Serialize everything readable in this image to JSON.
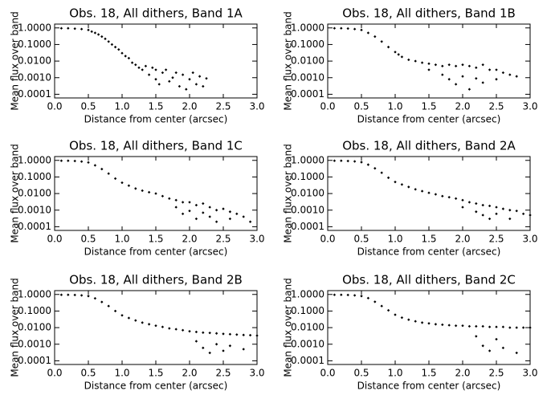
{
  "chart_data": [
    {
      "type": "scatter",
      "title": "Obs. 18, All dithers, Band 1A",
      "xlabel": "Distance from center (arcsec)",
      "ylabel": "Mean flux over band",
      "color": "#000000",
      "log_y": true,
      "xlim": [
        0,
        3
      ],
      "ylim": [
        6e-05,
        1.7
      ],
      "xticks": [
        {
          "value": 0,
          "label": "0.0"
        },
        0.5,
        {
          "value": 1,
          "label": "1.0"
        },
        1.5,
        {
          "value": 2,
          "label": "2.0"
        },
        2.5,
        {
          "value": 3,
          "label": "3.0"
        }
      ],
      "yticks": [
        {
          "value": 1,
          "label": "1.0000"
        },
        {
          "value": 0.1,
          "label": "0.1000"
        },
        {
          "value": 0.01,
          "label": "0.0100"
        },
        {
          "value": 0.001,
          "label": "0.0010"
        },
        {
          "value": 0.0001,
          "label": "0.0001"
        }
      ],
      "x": [
        0.1,
        0.2,
        0.3,
        0.4,
        0.5,
        0.55,
        0.6,
        0.65,
        0.7,
        0.75,
        0.8,
        0.85,
        0.9,
        0.95,
        1.0,
        1.05,
        1.1,
        1.15,
        1.2,
        1.25,
        1.3,
        1.35,
        1.4,
        1.45,
        1.5,
        1.5,
        1.55,
        1.6,
        1.65,
        1.7,
        1.75,
        1.8,
        1.85,
        1.9,
        1.95,
        2.0,
        2.05,
        2.1,
        2.15,
        2.2,
        2.25
      ],
      "values": [
        0.95,
        0.95,
        0.9,
        0.85,
        0.75,
        0.6,
        0.5,
        0.4,
        0.3,
        0.22,
        0.15,
        0.1,
        0.07,
        0.05,
        0.03,
        0.02,
        0.015,
        0.008,
        0.006,
        0.004,
        0.003,
        0.005,
        0.0015,
        0.004,
        0.0008,
        0.003,
        0.0004,
        0.002,
        0.003,
        0.0006,
        0.001,
        0.002,
        0.0003,
        0.0015,
        0.0002,
        0.0008,
        0.002,
        0.0004,
        0.0012,
        0.0003,
        0.0009
      ]
    },
    {
      "type": "scatter",
      "title": "Obs. 18, All dithers, Band 1B",
      "xlabel": "Distance from center (arcsec)",
      "ylabel": "Mean flux over band",
      "color": "#000000",
      "log_y": true,
      "xlim": [
        0,
        3
      ],
      "ylim": [
        6e-05,
        1.7
      ],
      "xticks": [
        {
          "value": 0,
          "label": "0.0"
        },
        0.5,
        {
          "value": 1,
          "label": "1.0"
        },
        1.5,
        {
          "value": 2,
          "label": "2.0"
        },
        2.5,
        {
          "value": 3,
          "label": "3.0"
        }
      ],
      "yticks": [
        {
          "value": 1,
          "label": "1.0000"
        },
        {
          "value": 0.1,
          "label": "0.1000"
        },
        {
          "value": 0.01,
          "label": "0.0100"
        },
        {
          "value": 0.001,
          "label": "0.0010"
        },
        {
          "value": 0.0001,
          "label": "0.0001"
        }
      ],
      "x": [
        0.1,
        0.2,
        0.3,
        0.4,
        0.5,
        0.6,
        0.7,
        0.8,
        0.9,
        1.0,
        1.05,
        1.1,
        1.2,
        1.3,
        1.4,
        1.5,
        1.5,
        1.6,
        1.7,
        1.7,
        1.8,
        1.8,
        1.9,
        1.9,
        2.0,
        2.0,
        2.1,
        2.1,
        2.2,
        2.2,
        2.3,
        2.3,
        2.4,
        2.5,
        2.5,
        2.6,
        2.7,
        2.8
      ],
      "values": [
        0.95,
        0.95,
        0.92,
        0.85,
        0.75,
        0.5,
        0.3,
        0.15,
        0.07,
        0.035,
        0.025,
        0.018,
        0.012,
        0.01,
        0.008,
        0.007,
        0.003,
        0.006,
        0.005,
        0.0015,
        0.006,
        0.0008,
        0.005,
        0.0004,
        0.006,
        0.0012,
        0.005,
        0.0002,
        0.004,
        0.0009,
        0.006,
        0.0005,
        0.003,
        0.003,
        0.0008,
        0.002,
        0.0015,
        0.0012
      ]
    },
    {
      "type": "scatter",
      "title": "Obs. 18, All dithers, Band 1C",
      "xlabel": "Distance from center (arcsec)",
      "ylabel": "Mean flux over band",
      "color": "#000000",
      "log_y": true,
      "xlim": [
        0,
        3
      ],
      "ylim": [
        6e-05,
        1.7
      ],
      "xticks": [
        {
          "value": 0,
          "label": "0.0"
        },
        0.5,
        {
          "value": 1,
          "label": "1.0"
        },
        1.5,
        {
          "value": 2,
          "label": "2.0"
        },
        2.5,
        {
          "value": 3,
          "label": "3.0"
        }
      ],
      "yticks": [
        {
          "value": 1,
          "label": "1.0000"
        },
        {
          "value": 0.1,
          "label": "0.1000"
        },
        {
          "value": 0.01,
          "label": "0.0100"
        },
        {
          "value": 0.001,
          "label": "0.0010"
        },
        {
          "value": 0.0001,
          "label": "0.0001"
        }
      ],
      "x": [
        0.1,
        0.2,
        0.3,
        0.4,
        0.5,
        0.6,
        0.7,
        0.8,
        0.9,
        1.0,
        1.1,
        1.2,
        1.3,
        1.4,
        1.5,
        1.6,
        1.7,
        1.8,
        1.8,
        1.9,
        1.9,
        2.0,
        2.0,
        2.1,
        2.1,
        2.2,
        2.2,
        2.3,
        2.3,
        2.4,
        2.4,
        2.5,
        2.6,
        2.6,
        2.7,
        2.8,
        2.9
      ],
      "values": [
        0.95,
        0.95,
        0.92,
        0.85,
        0.75,
        0.5,
        0.3,
        0.16,
        0.08,
        0.045,
        0.03,
        0.02,
        0.015,
        0.012,
        0.01,
        0.007,
        0.005,
        0.004,
        0.0015,
        0.003,
        0.0006,
        0.003,
        0.0009,
        0.002,
        0.0003,
        0.0025,
        0.0007,
        0.0015,
        0.0004,
        0.001,
        0.0002,
        0.0012,
        0.0008,
        0.0003,
        0.0006,
        0.0004,
        0.0002
      ]
    },
    {
      "type": "scatter",
      "title": "Obs. 18, All dithers, Band 2A",
      "xlabel": "Distance from center (arcsec)",
      "ylabel": "Mean flux over band",
      "color": "#000000",
      "log_y": true,
      "xlim": [
        0,
        3
      ],
      "ylim": [
        6e-05,
        1.7
      ],
      "xticks": [
        {
          "value": 0,
          "label": "0.0"
        },
        0.5,
        {
          "value": 1,
          "label": "1.0"
        },
        1.5,
        {
          "value": 2,
          "label": "2.0"
        },
        2.5,
        {
          "value": 3,
          "label": "3.0"
        }
      ],
      "yticks": [
        {
          "value": 1,
          "label": "1.0000"
        },
        {
          "value": 0.1,
          "label": "0.1000"
        },
        {
          "value": 0.01,
          "label": "0.0100"
        },
        {
          "value": 0.001,
          "label": "0.0010"
        },
        {
          "value": 0.0001,
          "label": "0.0001"
        }
      ],
      "x": [
        0.1,
        0.2,
        0.3,
        0.4,
        0.5,
        0.6,
        0.7,
        0.8,
        0.9,
        1.0,
        1.1,
        1.2,
        1.3,
        1.4,
        1.5,
        1.6,
        1.7,
        1.8,
        1.9,
        2.0,
        2.0,
        2.1,
        2.2,
        2.2,
        2.3,
        2.3,
        2.4,
        2.4,
        2.5,
        2.5,
        2.6,
        2.7,
        2.7,
        2.8,
        2.9,
        3.0
      ],
      "values": [
        0.95,
        0.95,
        0.92,
        0.87,
        0.78,
        0.55,
        0.33,
        0.18,
        0.09,
        0.05,
        0.035,
        0.025,
        0.018,
        0.014,
        0.011,
        0.009,
        0.007,
        0.006,
        0.005,
        0.004,
        0.0015,
        0.003,
        0.0025,
        0.0008,
        0.002,
        0.0005,
        0.0018,
        0.0003,
        0.0015,
        0.0006,
        0.0012,
        0.001,
        0.0003,
        0.0009,
        0.0006,
        0.0005
      ]
    },
    {
      "type": "scatter",
      "title": "Obs. 18, All dithers, Band 2B",
      "xlabel": "Distance from center (arcsec)",
      "ylabel": "Mean flux over band",
      "color": "#000000",
      "log_y": true,
      "xlim": [
        0,
        3
      ],
      "ylim": [
        6e-05,
        1.7
      ],
      "xticks": [
        {
          "value": 0,
          "label": "0.0"
        },
        0.5,
        {
          "value": 1,
          "label": "1.0"
        },
        1.5,
        {
          "value": 2,
          "label": "2.0"
        },
        2.5,
        {
          "value": 3,
          "label": "3.0"
        }
      ],
      "yticks": [
        {
          "value": 1,
          "label": "1.0000"
        },
        {
          "value": 0.1,
          "label": "0.1000"
        },
        {
          "value": 0.01,
          "label": "0.0100"
        },
        {
          "value": 0.001,
          "label": "0.0010"
        },
        {
          "value": 0.0001,
          "label": "0.0001"
        }
      ],
      "x": [
        0.1,
        0.2,
        0.3,
        0.4,
        0.5,
        0.6,
        0.7,
        0.8,
        0.9,
        1.0,
        1.1,
        1.2,
        1.3,
        1.4,
        1.5,
        1.6,
        1.7,
        1.8,
        1.9,
        2.0,
        2.1,
        2.1,
        2.2,
        2.2,
        2.3,
        2.3,
        2.4,
        2.4,
        2.5,
        2.5,
        2.6,
        2.6,
        2.7,
        2.8,
        2.8,
        2.9,
        3.0
      ],
      "values": [
        0.95,
        0.95,
        0.93,
        0.88,
        0.8,
        0.58,
        0.35,
        0.2,
        0.1,
        0.055,
        0.038,
        0.027,
        0.02,
        0.016,
        0.013,
        0.011,
        0.009,
        0.008,
        0.007,
        0.006,
        0.0055,
        0.0015,
        0.005,
        0.0006,
        0.0048,
        0.0003,
        0.0045,
        0.001,
        0.0042,
        0.0004,
        0.004,
        0.0008,
        0.0038,
        0.0036,
        0.0005,
        0.0035,
        0.0033
      ]
    },
    {
      "type": "scatter",
      "title": "Obs. 18, All dithers, Band 2C",
      "xlabel": "Distance from center (arcsec)",
      "ylabel": "Mean flux over band",
      "color": "#000000",
      "log_y": true,
      "xlim": [
        0,
        3
      ],
      "ylim": [
        6e-05,
        1.7
      ],
      "xticks": [
        {
          "value": 0,
          "label": "0.0"
        },
        0.5,
        {
          "value": 1,
          "label": "1.0"
        },
        1.5,
        {
          "value": 2,
          "label": "2.0"
        },
        2.5,
        {
          "value": 3,
          "label": "3.0"
        }
      ],
      "yticks": [
        {
          "value": 1,
          "label": "1.0000"
        },
        {
          "value": 0.1,
          "label": "0.1000"
        },
        {
          "value": 0.01,
          "label": "0.0100"
        },
        {
          "value": 0.001,
          "label": "0.0010"
        },
        {
          "value": 0.0001,
          "label": "0.0001"
        }
      ],
      "x": [
        0.1,
        0.2,
        0.3,
        0.4,
        0.5,
        0.6,
        0.7,
        0.8,
        0.9,
        1.0,
        1.1,
        1.2,
        1.3,
        1.4,
        1.5,
        1.6,
        1.7,
        1.8,
        1.9,
        2.0,
        2.1,
        2.2,
        2.2,
        2.3,
        2.3,
        2.4,
        2.4,
        2.5,
        2.5,
        2.6,
        2.6,
        2.7,
        2.8,
        2.8,
        2.9,
        3.0
      ],
      "values": [
        0.95,
        0.95,
        0.93,
        0.88,
        0.8,
        0.6,
        0.36,
        0.2,
        0.11,
        0.06,
        0.04,
        0.03,
        0.024,
        0.02,
        0.018,
        0.016,
        0.015,
        0.014,
        0.013,
        0.013,
        0.012,
        0.012,
        0.003,
        0.012,
        0.0008,
        0.011,
        0.0004,
        0.011,
        0.002,
        0.011,
        0.0006,
        0.01,
        0.01,
        0.0003,
        0.01,
        0.01
      ]
    }
  ]
}
